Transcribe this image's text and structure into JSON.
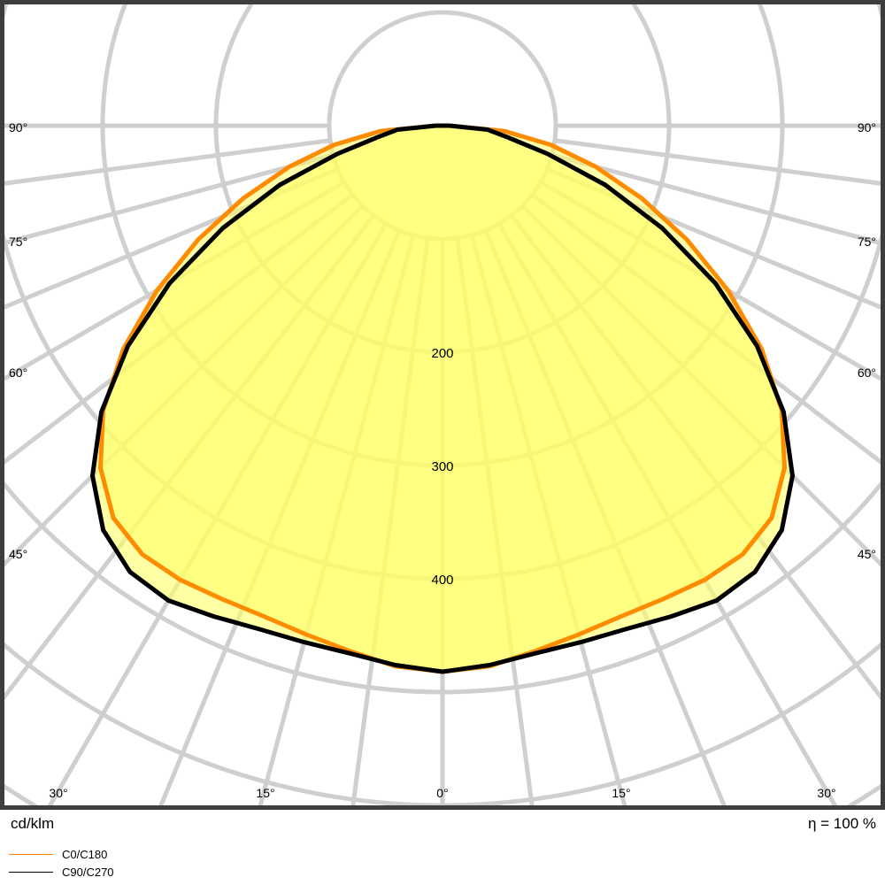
{
  "chart_data": {
    "type": "polar",
    "title": "",
    "unit_label": "cd/klm",
    "efficiency_label": "η = 100 %",
    "radial_ticks": [
      100,
      200,
      300,
      400,
      500,
      600,
      700
    ],
    "radial_tick_labels": [
      {
        "value": 200,
        "label": "200"
      },
      {
        "value": 300,
        "label": "300"
      },
      {
        "value": 400,
        "label": "400"
      }
    ],
    "angle_gridlines_deg": [
      0,
      7.5,
      15,
      22.5,
      30,
      37.5,
      45,
      52.5,
      60,
      67.5,
      75,
      82.5,
      90
    ],
    "angle_labels": [
      {
        "angle": 0,
        "text": "0°",
        "side": "bottom"
      },
      {
        "angle": 15,
        "text": "15°",
        "side": "bottom-left"
      },
      {
        "angle": 15,
        "text": "15°",
        "side": "bottom-right"
      },
      {
        "angle": 30,
        "text": "30°",
        "side": "bottom-left"
      },
      {
        "angle": 30,
        "text": "30°",
        "side": "bottom-right"
      },
      {
        "angle": 45,
        "text": "45°",
        "side": "left"
      },
      {
        "angle": 45,
        "text": "45°",
        "side": "right"
      },
      {
        "angle": 60,
        "text": "60°",
        "side": "left"
      },
      {
        "angle": 60,
        "text": "60°",
        "side": "right"
      },
      {
        "angle": 75,
        "text": "75°",
        "side": "left"
      },
      {
        "angle": 75,
        "text": "75°",
        "side": "right"
      },
      {
        "angle": 90,
        "text": "90°",
        "side": "left"
      },
      {
        "angle": 90,
        "text": "90°",
        "side": "right"
      }
    ],
    "series": [
      {
        "name": "C0/C180",
        "color": "#ff8c00",
        "angles": [
          0,
          5,
          10,
          15,
          20,
          25,
          30,
          35,
          40,
          45,
          50,
          55,
          60,
          65,
          70,
          75,
          80,
          85,
          90
        ],
        "values": [
          482,
          479,
          471,
          465,
          461,
          461,
          463,
          462,
          452,
          427,
          391,
          344,
          291,
          238,
          187,
          140,
          97,
          55,
          6
        ]
      },
      {
        "name": "C90/C270",
        "color": "#000000",
        "angles": [
          0,
          5,
          10,
          15,
          20,
          25,
          30,
          35,
          40,
          45,
          50,
          55,
          60,
          65,
          70,
          75,
          80,
          85,
          90
        ],
        "values": [
          482,
          478,
          473,
          472,
          473,
          478,
          484,
          481,
          466,
          437,
          393,
          339,
          278,
          214,
          153,
          96,
          58,
          40,
          6
        ]
      }
    ],
    "fill_color": "#ffff66",
    "grid": true,
    "legend_position": "bottom-left"
  }
}
